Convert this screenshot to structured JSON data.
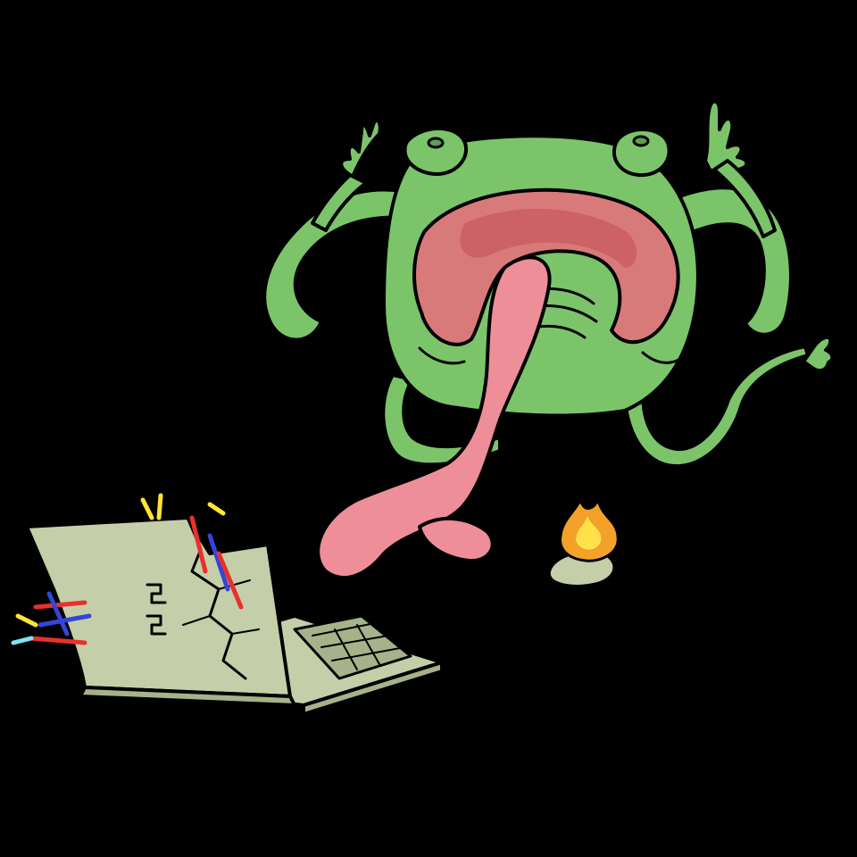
{
  "palette": {
    "background": "#000000",
    "frog_body": "#7cc46a",
    "frog_shade": "#5e9f52",
    "mouth": "#d97a7a",
    "mouth_inner": "#c24f55",
    "tongue": "#ee8e98",
    "laptop": "#c4cfaa",
    "laptop_dark": "#a6b289",
    "ink": "#000000",
    "fire_outer": "#f4a12a",
    "fire_inner": "#ffe24a",
    "spark_red": "#e8312b",
    "spark_blue": "#3446d6",
    "spark_yellow": "#ffe433",
    "spark_cyan": "#7ee3f2"
  },
  "objects": {
    "frog": "frog-monster",
    "laptop": "broken-laptop",
    "mouse": "burning-mouse"
  }
}
